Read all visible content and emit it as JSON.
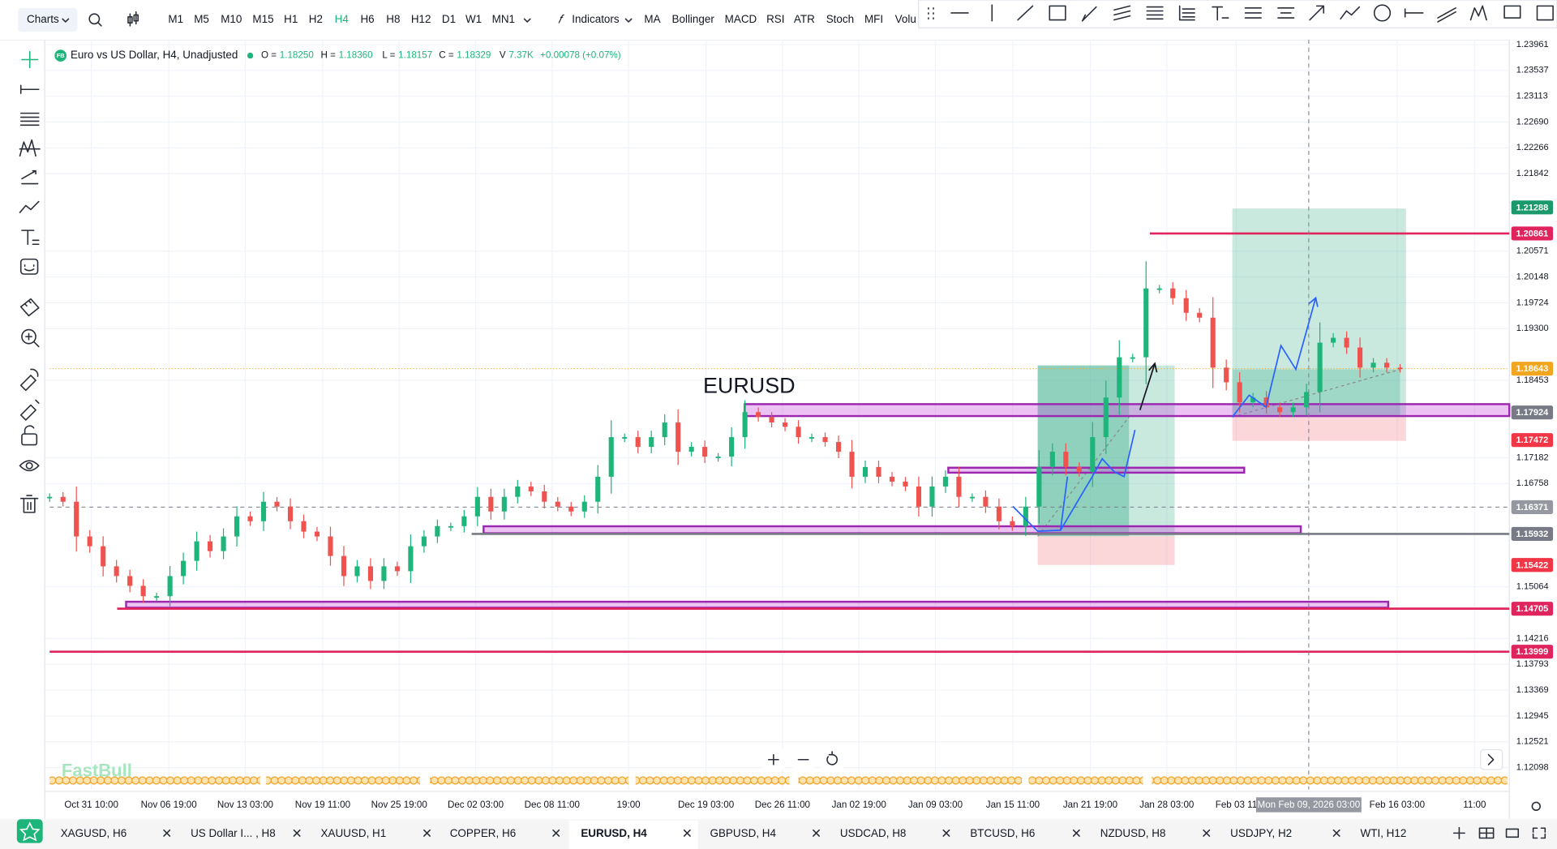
{
  "toolbar": {
    "chart_menu": "Charts",
    "timeframes": [
      "M1",
      "M5",
      "M10",
      "M15",
      "H1",
      "H2",
      "H4",
      "H6",
      "H8",
      "H12",
      "D1",
      "W1",
      "MN1"
    ],
    "indicators_button": "Indicators",
    "indicators": [
      "MA",
      "Bollinger",
      "MACD",
      "RSI",
      "ATR",
      "Stoch",
      "MFI",
      "Volu"
    ]
  },
  "legend": {
    "logo": "FB",
    "symbol": "Euro vs US Dollar, H4, Unadjusted",
    "ohlc": [
      {
        "label": "O =",
        "value": "1.18250"
      },
      {
        "label": "H =",
        "value": "1.18360"
      },
      {
        "label": "L =",
        "value": "1.18157"
      },
      {
        "label": "C =",
        "value": "1.18329"
      },
      {
        "label": "V",
        "value": "7.37K"
      }
    ],
    "change": "+0.00078 (+0.07%)"
  },
  "annotation": "EURUSD",
  "watermark": "FastBull",
  "chart_data": {
    "type": "candlestick",
    "closes": [
      1.1654,
      1.1646,
      1.1589,
      1.1573,
      1.154,
      1.1524,
      1.1508,
      1.1491,
      1.1491,
      1.1524,
      1.1549,
      1.1581,
      1.1565,
      1.1589,
      1.1622,
      1.1614,
      1.1646,
      1.1638,
      1.1614,
      1.1597,
      1.1589,
      1.1557,
      1.1524,
      1.154,
      1.1516,
      1.154,
      1.1532,
      1.1573,
      1.1589,
      1.1606,
      1.1606,
      1.1622,
      1.1654,
      1.163,
      1.1654,
      1.1671,
      1.1663,
      1.1646,
      1.1638,
      1.163,
      1.1646,
      1.1687,
      1.1752,
      1.1752,
      1.1736,
      1.1752,
      1.1776,
      1.1728,
      1.1736,
      1.172,
      1.172,
      1.1752,
      1.1793,
      1.1785,
      1.1776,
      1.1769,
      1.1752,
      1.1752,
      1.1744,
      1.1728,
      1.1687,
      1.1703,
      1.1687,
      1.1679,
      1.1671,
      1.1638,
      1.1671,
      1.1687,
      1.1654,
      1.1654,
      1.1638,
      1.1614,
      1.1606,
      1.1638,
      1.1703,
      1.1728,
      1.1703,
      1.1695,
      1.1752,
      1.1817,
      1.1883,
      1.1883,
      1.1996,
      1.1996,
      1.198,
      1.1956,
      1.1948,
      1.1866,
      1.1842,
      1.1809,
      1.1817,
      1.1801,
      1.1793,
      1.1801,
      1.1826,
      1.1907,
      1.1915,
      1.1899,
      1.1866,
      1.1874,
      1.1866,
      1.1864
    ],
    "up_color": "#1db57a",
    "down_color": "#ef5350",
    "ylim": [
      1.1174,
      1.2404
    ],
    "yticks": [
      1.23961,
      1.23537,
      1.23113,
      {
        "value": 1.2269,
        "label": "1.22690"
      },
      1.22266,
      1.21842,
      1.20571,
      1.20148,
      1.19724,
      {
        "value": 1.193,
        "label": "1.19300"
      },
      1.18453,
      1.17182,
      1.16758,
      1.15064,
      1.14216,
      1.13793,
      1.13369,
      1.12945,
      1.12521,
      1.12098
    ],
    "markers": [
      {
        "value": 1.21288,
        "color": "#1a9a6c"
      },
      {
        "value": 1.20861,
        "color": "#e0245e"
      },
      {
        "value": 1.18643,
        "color": "#f2a51f"
      },
      {
        "value": 1.17924,
        "color": "#787b86"
      },
      {
        "value": 1.17472,
        "color": "#f23645"
      },
      {
        "value": 1.16371,
        "color": "#9598a1"
      },
      {
        "value": 1.15932,
        "color": "#787b86"
      },
      {
        "value": 1.15422,
        "color": "#f23645"
      },
      {
        "value": 1.14705,
        "color": "#e0245e"
      },
      {
        "value": 1.13999,
        "color": "#e0245e"
      }
    ],
    "x_labels": [
      "Oct 31 10:00",
      "Nov 06 19:00",
      "Nov 13 03:00",
      "Nov 19 11:00",
      "Nov 25 19:00",
      "Dec 02 03:00",
      "Dec 08 11:00",
      "19:00",
      "Dec 19 03:00",
      "Dec 26 11:00",
      "Jan 02 19:00",
      "Jan 09 03:00",
      "Jan 15 11:00",
      "Jan 21 19:00",
      "Jan 28 03:00",
      "Feb 03 11",
      "Mon Feb 09, 2026 03:00",
      "Feb 16 03:00",
      "11:00"
    ],
    "grid": true
  },
  "tabs": [
    "XAGUSD, H6",
    "US Dollar I... , H8",
    "XAUUSD, H1",
    "COPPER, H6",
    "EURUSD, H4",
    "GBPUSD, H4",
    "USDCAD, H8",
    "BTCUSD, H6",
    "NZDUSD, H8",
    "USDJPY, H2",
    "WTI, H12"
  ]
}
